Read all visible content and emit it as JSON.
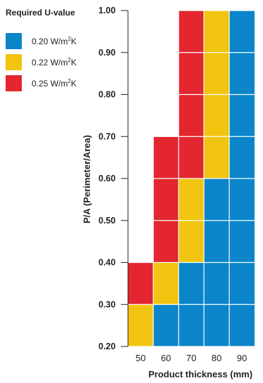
{
  "chart_data": {
    "type": "heatmap",
    "xlabel": "Product thickness (mm)",
    "ylabel": "P/A (Perimeter/Area)",
    "x_categories": [
      "50",
      "60",
      "70",
      "80",
      "90"
    ],
    "y_ticks": [
      "0.20",
      "0.30",
      "0.40",
      "0.50",
      "0.60",
      "0.70",
      "0.80",
      "0.90",
      "1.00"
    ],
    "ylim": [
      0.2,
      1.0
    ],
    "legend": {
      "title": "Required U-value",
      "placement": "top-left",
      "items": [
        {
          "key": "u020",
          "label_prefix": "0.20 W/m",
          "label_sup": "2",
          "label_suffix": "K",
          "color": "#0a85c9"
        },
        {
          "key": "u022",
          "label_prefix": "0.22 W/m",
          "label_sup": "2",
          "label_suffix": "K",
          "color": "#f1c40f"
        },
        {
          "key": "u025",
          "label_prefix": "0.25 W/m",
          "label_sup": "2",
          "label_suffix": "K",
          "color": "#e3262f"
        }
      ]
    },
    "columns": [
      {
        "x": "50",
        "segments": [
          {
            "from": 0.2,
            "to": 0.3,
            "u": "u022"
          },
          {
            "from": 0.3,
            "to": 0.4,
            "u": "u025"
          }
        ]
      },
      {
        "x": "60",
        "segments": [
          {
            "from": 0.2,
            "to": 0.3,
            "u": "u020"
          },
          {
            "from": 0.3,
            "to": 0.4,
            "u": "u022"
          },
          {
            "from": 0.4,
            "to": 0.7,
            "u": "u025"
          }
        ]
      },
      {
        "x": "70",
        "segments": [
          {
            "from": 0.2,
            "to": 0.4,
            "u": "u020"
          },
          {
            "from": 0.4,
            "to": 0.6,
            "u": "u022"
          },
          {
            "from": 0.6,
            "to": 1.0,
            "u": "u025"
          }
        ]
      },
      {
        "x": "80",
        "segments": [
          {
            "from": 0.2,
            "to": 0.6,
            "u": "u020"
          },
          {
            "from": 0.6,
            "to": 1.0,
            "u": "u022"
          }
        ]
      },
      {
        "x": "90",
        "segments": [
          {
            "from": 0.2,
            "to": 1.0,
            "u": "u020"
          }
        ]
      }
    ],
    "grid": true
  }
}
